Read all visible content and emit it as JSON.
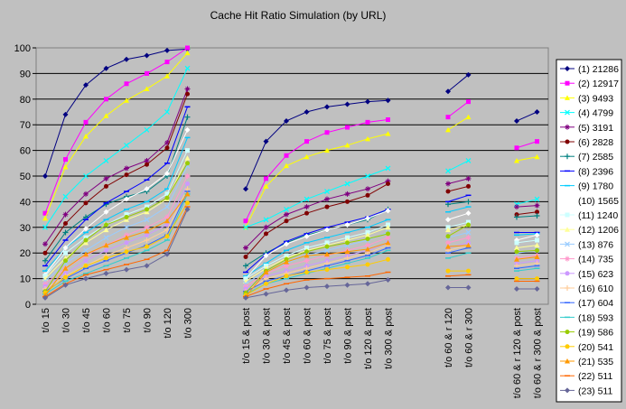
{
  "chart_data": {
    "type": "line",
    "title": "Cache Hit Ratio Simulation (by URL)",
    "xlabel": "",
    "ylabel": "",
    "ylim": [
      0,
      100
    ],
    "yticks": [
      0,
      10,
      20,
      30,
      40,
      50,
      60,
      70,
      80,
      90,
      100
    ],
    "grid": "horizontal",
    "legend_position": "right",
    "groups": [
      [
        "t/o 15",
        "t/o 30",
        "t/o 45",
        "t/o 60",
        "t/o 75",
        "t/o 90",
        "t/o 120",
        "t/o 300"
      ],
      [
        "t/o 15 & post",
        "t/o 30 & post",
        "t/o 45 & post",
        "t/o 60 & post",
        "t/o 75 & post",
        "t/o 90 & post",
        "t/o 120 & post",
        "t/o 300 & post"
      ],
      [
        "t/o 60 & r 120",
        "t/o 60 & r 300"
      ],
      [
        "t/o 60 & r 120 & post",
        "t/o 60 & r 300 & post"
      ]
    ],
    "series": [
      {
        "name": "(1) 21286",
        "color": "#000080",
        "marker": "diamond",
        "values": [
          50,
          74,
          85.5,
          92,
          95.5,
          97,
          99,
          99.5,
          45,
          63.5,
          71.5,
          75,
          77,
          78,
          79,
          79.5,
          83,
          89.5,
          71.5,
          75
        ]
      },
      {
        "name": "(2) 12917",
        "color": "#ff00ff",
        "marker": "square",
        "values": [
          35.5,
          56.5,
          71,
          80,
          86,
          90,
          94.5,
          100,
          32.5,
          49,
          58,
          63.5,
          67,
          69,
          71,
          72,
          73,
          79,
          61,
          63.5
        ]
      },
      {
        "name": "(3) 9493",
        "color": "#ffff00",
        "marker": "triangle",
        "values": [
          33.5,
          53.5,
          65.5,
          73.5,
          79.5,
          84,
          89,
          98,
          30,
          46,
          54,
          57.5,
          60,
          62,
          64.5,
          66.5,
          68,
          73,
          56,
          57.5
        ]
      },
      {
        "name": "(4) 4799",
        "color": "#00ffff",
        "marker": "x",
        "values": [
          30,
          42,
          50,
          56,
          62,
          68,
          75,
          92,
          30,
          33,
          37,
          41,
          44,
          47,
          50,
          53,
          52,
          56,
          39,
          41
        ]
      },
      {
        "name": "(5) 3191",
        "color": "#800080",
        "marker": "star",
        "values": [
          23.5,
          35,
          43,
          49,
          53,
          56,
          63,
          84,
          22,
          30,
          35,
          38,
          41,
          43,
          45,
          48,
          47,
          49,
          38,
          38.5
        ]
      },
      {
        "name": "(6) 2828",
        "color": "#800000",
        "marker": "circle",
        "values": [
          20,
          31.5,
          39.5,
          46,
          50.5,
          54.5,
          61,
          82,
          18.5,
          27.5,
          32.5,
          35.5,
          38,
          40,
          42.5,
          47,
          44,
          46,
          35,
          36
        ]
      },
      {
        "name": "(7) 2585",
        "color": "#008080",
        "marker": "plus",
        "values": [
          17,
          28,
          34,
          39,
          42,
          44,
          50,
          73,
          15,
          20,
          24,
          27,
          29,
          31,
          33,
          37,
          39,
          40,
          34,
          34.5
        ]
      },
      {
        "name": "(8) 2396",
        "color": "#0000ff",
        "marker": "dash",
        "values": [
          15,
          25,
          33,
          39.5,
          44,
          48.5,
          55,
          77,
          12.5,
          19.5,
          24.5,
          27.5,
          30,
          32,
          34,
          37,
          40,
          42.5,
          28,
          28
        ]
      },
      {
        "name": "(9) 1780",
        "color": "#00ccff",
        "marker": "dash",
        "values": [
          13,
          22,
          28,
          33,
          37,
          40,
          45,
          65,
          11,
          16,
          21,
          24,
          26,
          28,
          30,
          33,
          36,
          38,
          27,
          27.5
        ]
      },
      {
        "name": "(10) 1565",
        "color": "#ffffff",
        "marker": "diamond",
        "values": [
          11.5,
          22,
          29.5,
          36,
          41,
          45,
          51,
          68,
          10,
          19,
          23.5,
          26.5,
          29,
          31,
          33.5,
          36.5,
          33,
          35.5,
          25,
          27
        ]
      },
      {
        "name": "(11) 1240",
        "color": "#ccffff",
        "marker": "square",
        "values": [
          11,
          20,
          26,
          31,
          35,
          38,
          43,
          60,
          10,
          15,
          19,
          22,
          24,
          26,
          28,
          31,
          30,
          32,
          24,
          25
        ]
      },
      {
        "name": "(12) 1206",
        "color": "#ffff99",
        "marker": "triangle",
        "values": [
          10,
          18,
          24,
          29,
          33,
          36,
          41,
          57,
          9,
          14,
          18,
          21,
          23,
          25,
          27,
          30,
          29,
          31,
          22,
          23
        ]
      },
      {
        "name": "(13) 876",
        "color": "#99ccff",
        "marker": "x",
        "values": [
          9,
          16,
          21,
          26,
          30,
          33,
          38,
          54,
          8,
          13,
          16,
          19,
          21,
          23,
          25,
          28,
          26,
          28,
          20,
          21
        ]
      },
      {
        "name": "(14) 735",
        "color": "#ff99cc",
        "marker": "star",
        "values": [
          8,
          14,
          19,
          23,
          27,
          30,
          34,
          50,
          7,
          12,
          15,
          17,
          19,
          21,
          23,
          26,
          24,
          26,
          18,
          19
        ]
      },
      {
        "name": "(15) 623",
        "color": "#cc99ff",
        "marker": "circle",
        "values": [
          7,
          12,
          17,
          21,
          24,
          27,
          31,
          47,
          6,
          11,
          13,
          15,
          17,
          19,
          21,
          24,
          22,
          24,
          16,
          17
        ]
      },
      {
        "name": "(16) 610",
        "color": "#ffcc99",
        "marker": "plus",
        "values": [
          6,
          11,
          15,
          19,
          22,
          25,
          29,
          45,
          5,
          10,
          12,
          14,
          16,
          18,
          20,
          23,
          21,
          23,
          15,
          16
        ]
      },
      {
        "name": "(17) 604",
        "color": "#3366ff",
        "marker": "dash",
        "values": [
          5,
          10,
          14,
          17,
          20,
          23,
          27,
          44,
          5,
          9,
          11,
          13,
          15,
          17,
          19,
          22,
          20,
          22,
          14,
          15
        ]
      },
      {
        "name": "(18) 593",
        "color": "#33cccc",
        "marker": "dash",
        "values": [
          4,
          9,
          12,
          15,
          18,
          21,
          25,
          43,
          4,
          8,
          10,
          12,
          14,
          16,
          18,
          21,
          18,
          20,
          13,
          14
        ]
      },
      {
        "name": "(19) 586",
        "color": "#99cc00",
        "marker": "circle",
        "values": [
          5,
          17,
          25,
          31,
          34,
          37,
          41.5,
          55,
          4.5,
          13,
          17.5,
          20.5,
          22.5,
          24,
          25.5,
          27.5,
          26.5,
          31,
          20.5,
          21
        ]
      },
      {
        "name": "(20) 541",
        "color": "#ffcc00",
        "marker": "circle",
        "values": [
          4.5,
          10.5,
          15,
          18,
          20.5,
          22.5,
          26.5,
          39.5,
          3.5,
          8,
          11,
          12.5,
          13.5,
          14.5,
          15.5,
          17.5,
          13,
          13,
          10,
          10
        ]
      },
      {
        "name": "(21) 535",
        "color": "#ff9900",
        "marker": "triangle",
        "values": [
          3.5,
          14,
          19.5,
          23,
          26,
          28.5,
          32.5,
          43,
          3,
          12.5,
          16.5,
          19,
          19.5,
          20.5,
          21.5,
          24,
          22.5,
          23,
          17.5,
          18.5
        ]
      },
      {
        "name": "(22) 511",
        "color": "#ff6600",
        "marker": "dash",
        "values": [
          3,
          8,
          11.5,
          13.5,
          15.5,
          17.5,
          21,
          38,
          3,
          6,
          8,
          9.5,
          10,
          10.5,
          11,
          12.5,
          11,
          11.5,
          9,
          9
        ]
      },
      {
        "name": "(23) 511",
        "color": "#666699",
        "marker": "diamond",
        "values": [
          2.5,
          7.5,
          10,
          12,
          13.5,
          15,
          19.5,
          37,
          2.5,
          4,
          5.5,
          6.5,
          7,
          7.5,
          8,
          9.5,
          6.5,
          6.5,
          6,
          6
        ]
      }
    ]
  }
}
